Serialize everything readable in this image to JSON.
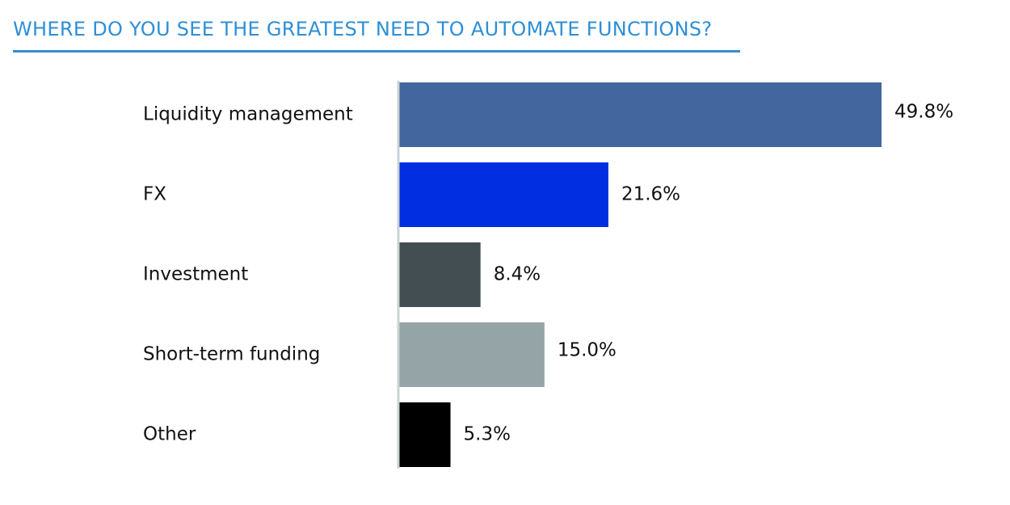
{
  "chart_data": {
    "type": "bar",
    "orientation": "horizontal",
    "title": "WHERE DO YOU SEE THE GREATEST NEED TO AUTOMATE FUNCTIONS?",
    "categories": [
      "Liquidity management",
      "FX",
      "Investment",
      "Short-term funding",
      "Other"
    ],
    "values": [
      49.8,
      21.6,
      8.4,
      15.0,
      5.3
    ],
    "value_labels": [
      "49.8%",
      "21.6%",
      "8.4%",
      "15.0%",
      "5.3%"
    ],
    "colors": [
      "#44669e",
      "#022ee2",
      "#424e52",
      "#95a4a6",
      "#000000"
    ],
    "axis_color": "#c9d3d4",
    "xlabel": "",
    "ylabel": "",
    "xlim": [
      0,
      50
    ],
    "grid": false,
    "legend": "none"
  }
}
